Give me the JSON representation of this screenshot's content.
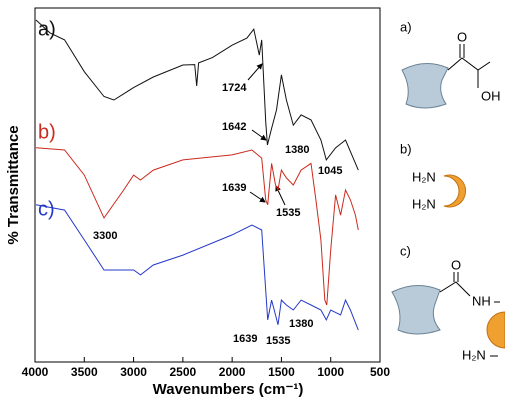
{
  "chart_data": {
    "type": "line",
    "xlabel": "Wavenumbers (cm⁻¹)",
    "ylabel": "% Transmittance",
    "xlim": [
      4000,
      500
    ],
    "ylim": [
      0,
      100
    ],
    "xticks": [
      4000,
      3500,
      3000,
      2500,
      2000,
      1500,
      1000,
      500
    ],
    "series": [
      {
        "name": "a)",
        "color": "#111111",
        "x": [
          3990,
          3850,
          3700,
          3500,
          3300,
          3200,
          3000,
          2800,
          2500,
          2380,
          2360,
          2340,
          2200,
          2000,
          1850,
          1780,
          1724,
          1700,
          1660,
          1642,
          1600,
          1550,
          1500,
          1450,
          1380,
          1300,
          1200,
          1100,
          1045,
          950,
          850,
          720
        ],
        "values": [
          96.6,
          93.0,
          91.0,
          82.0,
          75.0,
          74.0,
          77.5,
          80.5,
          83.9,
          84.0,
          78.0,
          84.5,
          86.0,
          89.5,
          91.5,
          94.0,
          86.7,
          91.0,
          68.0,
          61.3,
          66.0,
          71.2,
          81.1,
          74.0,
          66.9,
          69.8,
          68.4,
          62.7,
          57.1,
          60.5,
          62.7,
          54.2
        ]
      },
      {
        "name": "b)",
        "color": "#cc2a1e",
        "x": [
          3990,
          3700,
          3500,
          3300,
          3100,
          3000,
          2930,
          2800,
          2500,
          2000,
          1800,
          1700,
          1660,
          1639,
          1600,
          1560,
          1535,
          1500,
          1450,
          1380,
          1300,
          1200,
          1150,
          1100,
          1060,
          1040,
          1000,
          950,
          900,
          850,
          800,
          750,
          720
        ],
        "values": [
          60.5,
          59.9,
          52.8,
          40.7,
          48.6,
          52.8,
          51.4,
          54.2,
          57.1,
          58.5,
          59.9,
          57.6,
          45.8,
          44.4,
          56.1,
          50.0,
          48.6,
          54.2,
          52.0,
          50.0,
          54.2,
          56.1,
          45.8,
          34.5,
          17.5,
          16.1,
          31.6,
          47.2,
          41.5,
          48.6,
          45.8,
          41.5,
          37.3
        ]
      },
      {
        "name": "c)",
        "color": "#2438c8",
        "x": [
          3990,
          3700,
          3500,
          3300,
          3000,
          2930,
          2800,
          2500,
          2000,
          1800,
          1700,
          1660,
          1639,
          1600,
          1560,
          1535,
          1500,
          1450,
          1380,
          1300,
          1200,
          1100,
          1045,
          1000,
          900,
          850,
          800,
          720
        ],
        "values": [
          44.4,
          42.9,
          34.5,
          26.0,
          26.0,
          24.6,
          27.4,
          30.2,
          35.9,
          38.7,
          37.3,
          20.3,
          11.9,
          17.5,
          13.3,
          10.5,
          17.5,
          16.1,
          14.7,
          17.5,
          16.1,
          14.7,
          11.9,
          14.7,
          13.3,
          17.5,
          14.7,
          9.0
        ]
      }
    ],
    "annotations": [
      {
        "text": "1724"
      },
      {
        "text": "1642"
      },
      {
        "text": "1380"
      },
      {
        "text": "1045"
      },
      {
        "text": "3300"
      },
      {
        "text": "1639"
      },
      {
        "text": "1535"
      },
      {
        "text": "1639"
      },
      {
        "text": "1535"
      },
      {
        "text": "1380"
      }
    ]
  },
  "diagram": {
    "a": {
      "label": "a)",
      "o": "O",
      "oh": "OH"
    },
    "b": {
      "label": "b)",
      "amine1": "H₂N",
      "amine2": "H₂N"
    },
    "c": {
      "label": "c)",
      "o": "O",
      "nh": "NH",
      "amine": "H₂N"
    }
  }
}
